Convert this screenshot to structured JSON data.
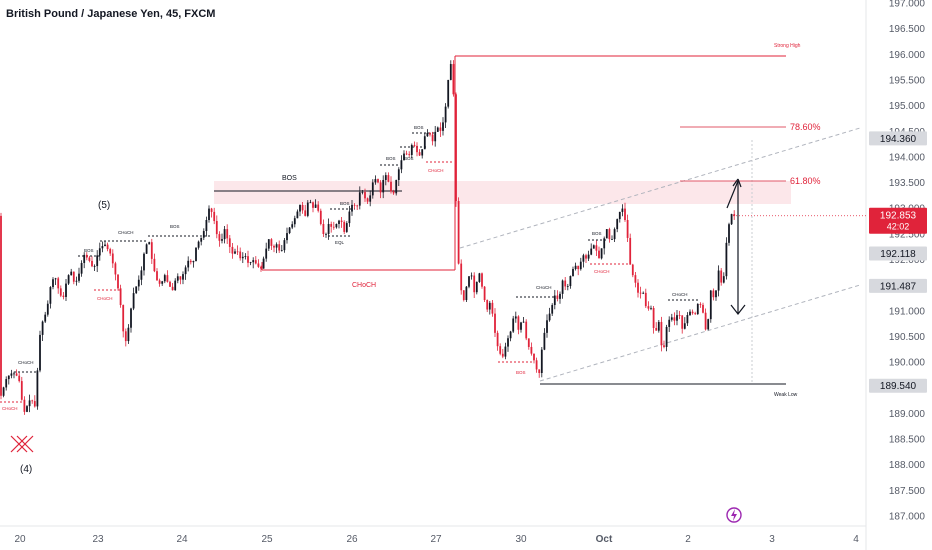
{
  "header": {
    "title": "British Pound / Japanese Yen, 45, FXCM"
  },
  "colors": {
    "bull": "#131722",
    "bear": "#e0233a",
    "annotation_red": "#e0233a",
    "annotation_black": "#131722",
    "fib_line": "#e05a6a",
    "zone_fill": "#fbe3e6",
    "channel": "#b0b4bd",
    "last_price_bg": "#e0233a",
    "price_badge_bg": "#8d8f94",
    "price_badge_dark_bg": "#5d6066"
  },
  "chart_data": {
    "type": "candlestick",
    "symbol": "British Pound / Japanese Yen",
    "interval": "45",
    "source": "FXCM",
    "y_axis": {
      "ticks": [
        "197.000",
        "196.500",
        "196.000",
        "195.500",
        "195.000",
        "194.500",
        "194.000",
        "193.500",
        "193.000",
        "192.500",
        "192.000",
        "191.500",
        "191.000",
        "190.500",
        "190.000",
        "189.500",
        "189.000",
        "188.500",
        "188.000",
        "187.500",
        "187.000"
      ],
      "range": [
        186.85,
        197.15
      ]
    },
    "x_axis": {
      "ticks": [
        {
          "label": "20",
          "x": 20
        },
        {
          "label": "23",
          "x": 98
        },
        {
          "label": "24",
          "x": 182
        },
        {
          "label": "25",
          "x": 267
        },
        {
          "label": "26",
          "x": 352
        },
        {
          "label": "27",
          "x": 436
        },
        {
          "label": "30",
          "x": 521
        },
        {
          "label": "Oct",
          "x": 604
        },
        {
          "label": "2",
          "x": 688
        },
        {
          "label": "3",
          "x": 772
        },
        {
          "label": "4",
          "x": 856
        }
      ]
    },
    "anchors": [
      [
        0,
        189.2
      ],
      [
        8,
        189.7
      ],
      [
        14,
        189.8
      ],
      [
        20,
        189.7
      ],
      [
        25,
        189.0
      ],
      [
        32,
        189.3
      ],
      [
        37,
        189.1
      ],
      [
        40,
        190.4
      ],
      [
        44,
        190.8
      ],
      [
        48,
        191.0
      ],
      [
        52,
        191.5
      ],
      [
        56,
        191.7
      ],
      [
        60,
        191.4
      ],
      [
        64,
        191.2
      ],
      [
        68,
        191.6
      ],
      [
        72,
        191.8
      ],
      [
        76,
        191.5
      ],
      [
        80,
        191.7
      ],
      [
        85,
        192.1
      ],
      [
        90,
        192.0
      ],
      [
        95,
        191.8
      ],
      [
        100,
        192.2
      ],
      [
        106,
        192.3
      ],
      [
        112,
        192.1
      ],
      [
        118,
        191.6
      ],
      [
        122,
        191.1
      ],
      [
        126,
        190.3
      ],
      [
        130,
        190.7
      ],
      [
        134,
        191.3
      ],
      [
        138,
        191.5
      ],
      [
        142,
        191.7
      ],
      [
        146,
        192.2
      ],
      [
        150,
        192.4
      ],
      [
        154,
        191.9
      ],
      [
        158,
        191.6
      ],
      [
        162,
        191.5
      ],
      [
        166,
        191.7
      ],
      [
        170,
        191.5
      ],
      [
        174,
        191.4
      ],
      [
        178,
        191.7
      ],
      [
        182,
        191.6
      ],
      [
        186,
        191.8
      ],
      [
        190,
        192.0
      ],
      [
        194,
        191.9
      ],
      [
        198,
        192.3
      ],
      [
        202,
        192.4
      ],
      [
        206,
        192.6
      ],
      [
        210,
        193.0
      ],
      [
        214,
        192.9
      ],
      [
        218,
        192.5
      ],
      [
        222,
        192.3
      ],
      [
        226,
        192.6
      ],
      [
        230,
        192.3
      ],
      [
        234,
        192.1
      ],
      [
        238,
        192.2
      ],
      [
        242,
        192.0
      ],
      [
        246,
        192.1
      ],
      [
        250,
        191.9
      ],
      [
        254,
        192.0
      ],
      [
        258,
        191.9
      ],
      [
        262,
        191.8
      ],
      [
        266,
        192.1
      ],
      [
        270,
        192.4
      ],
      [
        274,
        192.2
      ],
      [
        278,
        192.3
      ],
      [
        282,
        192.1
      ],
      [
        286,
        192.4
      ],
      [
        290,
        192.6
      ],
      [
        294,
        192.7
      ],
      [
        298,
        192.9
      ],
      [
        302,
        193.1
      ],
      [
        306,
        192.8
      ],
      [
        310,
        193.2
      ],
      [
        314,
        193.0
      ],
      [
        318,
        193.1
      ],
      [
        322,
        192.7
      ],
      [
        326,
        192.4
      ],
      [
        330,
        192.7
      ],
      [
        334,
        192.6
      ],
      [
        338,
        192.7
      ],
      [
        342,
        192.8
      ],
      [
        346,
        192.5
      ],
      [
        350,
        192.9
      ],
      [
        354,
        193.1
      ],
      [
        358,
        193.0
      ],
      [
        362,
        193.4
      ],
      [
        366,
        193.2
      ],
      [
        370,
        193.1
      ],
      [
        374,
        193.5
      ],
      [
        378,
        193.6
      ],
      [
        382,
        193.3
      ],
      [
        386,
        193.7
      ],
      [
        390,
        193.5
      ],
      [
        394,
        193.2
      ],
      [
        398,
        193.6
      ],
      [
        402,
        193.9
      ],
      [
        406,
        194.1
      ],
      [
        410,
        194.0
      ],
      [
        414,
        194.3
      ],
      [
        418,
        194.1
      ],
      [
        422,
        194.0
      ],
      [
        426,
        194.4
      ],
      [
        430,
        194.5
      ],
      [
        434,
        194.3
      ],
      [
        438,
        194.6
      ],
      [
        442,
        194.5
      ],
      [
        446,
        194.8
      ],
      [
        450,
        195.6
      ],
      [
        453,
        195.9
      ],
      [
        456,
        194.7
      ],
      [
        458,
        192.3
      ],
      [
        461,
        191.7
      ],
      [
        464,
        191.1
      ],
      [
        468,
        191.5
      ],
      [
        472,
        191.8
      ],
      [
        476,
        191.3
      ],
      [
        480,
        191.8
      ],
      [
        484,
        191.4
      ],
      [
        488,
        191.0
      ],
      [
        492,
        191.2
      ],
      [
        496,
        190.6
      ],
      [
        500,
        190.2
      ],
      [
        504,
        190.1
      ],
      [
        508,
        190.4
      ],
      [
        512,
        190.6
      ],
      [
        516,
        191.0
      ],
      [
        520,
        190.6
      ],
      [
        524,
        190.9
      ],
      [
        528,
        190.4
      ],
      [
        532,
        190.2
      ],
      [
        536,
        190.0
      ],
      [
        540,
        189.7
      ],
      [
        544,
        190.4
      ],
      [
        548,
        190.8
      ],
      [
        552,
        191.0
      ],
      [
        556,
        191.3
      ],
      [
        560,
        191.2
      ],
      [
        564,
        191.6
      ],
      [
        568,
        191.4
      ],
      [
        572,
        191.7
      ],
      [
        576,
        191.9
      ],
      [
        580,
        191.8
      ],
      [
        584,
        192.1
      ],
      [
        588,
        192.0
      ],
      [
        592,
        192.2
      ],
      [
        596,
        192.3
      ],
      [
        600,
        192.0
      ],
      [
        604,
        192.3
      ],
      [
        608,
        192.6
      ],
      [
        612,
        192.3
      ],
      [
        616,
        192.6
      ],
      [
        620,
        192.9
      ],
      [
        624,
        193.0
      ],
      [
        628,
        192.6
      ],
      [
        632,
        191.8
      ],
      [
        636,
        191.6
      ],
      [
        640,
        191.3
      ],
      [
        644,
        191.4
      ],
      [
        648,
        191.0
      ],
      [
        652,
        191.1
      ],
      [
        656,
        190.5
      ],
      [
        660,
        190.8
      ],
      [
        664,
        190.1
      ],
      [
        668,
        190.7
      ],
      [
        672,
        190.9
      ],
      [
        676,
        190.8
      ],
      [
        680,
        191.0
      ],
      [
        684,
        190.6
      ],
      [
        688,
        190.9
      ],
      [
        692,
        191.0
      ],
      [
        696,
        190.9
      ],
      [
        700,
        191.2
      ],
      [
        704,
        191.0
      ],
      [
        708,
        190.5
      ],
      [
        712,
        191.4
      ],
      [
        716,
        191.2
      ],
      [
        720,
        191.8
      ],
      [
        724,
        191.4
      ],
      [
        728,
        192.4
      ],
      [
        732,
        192.9
      ],
      [
        735,
        192.85
      ]
    ]
  },
  "annotations": {
    "wave_5": "(5)",
    "wave_4": "(4)",
    "bos_main": "BOS",
    "choch_main": "CHoCH",
    "strong_high": "Strong High",
    "weak_low": "Weak Low",
    "fib_786": "78.60%",
    "fib_618": "61.80%",
    "small_bos": "BOS",
    "small_choch": "CHoCH",
    "eql": "EQL"
  },
  "price_badges": [
    {
      "label": "194.360",
      "price": 194.36,
      "style": "grey"
    },
    {
      "label": "192.118",
      "price": 192.118,
      "style": "grey"
    },
    {
      "label": "191.487",
      "price": 191.487,
      "style": "grey"
    },
    {
      "label": "189.540",
      "price": 189.54,
      "style": "grey"
    }
  ],
  "last_price": {
    "value": "192.853",
    "countdown": "42:02",
    "price": 192.853
  }
}
